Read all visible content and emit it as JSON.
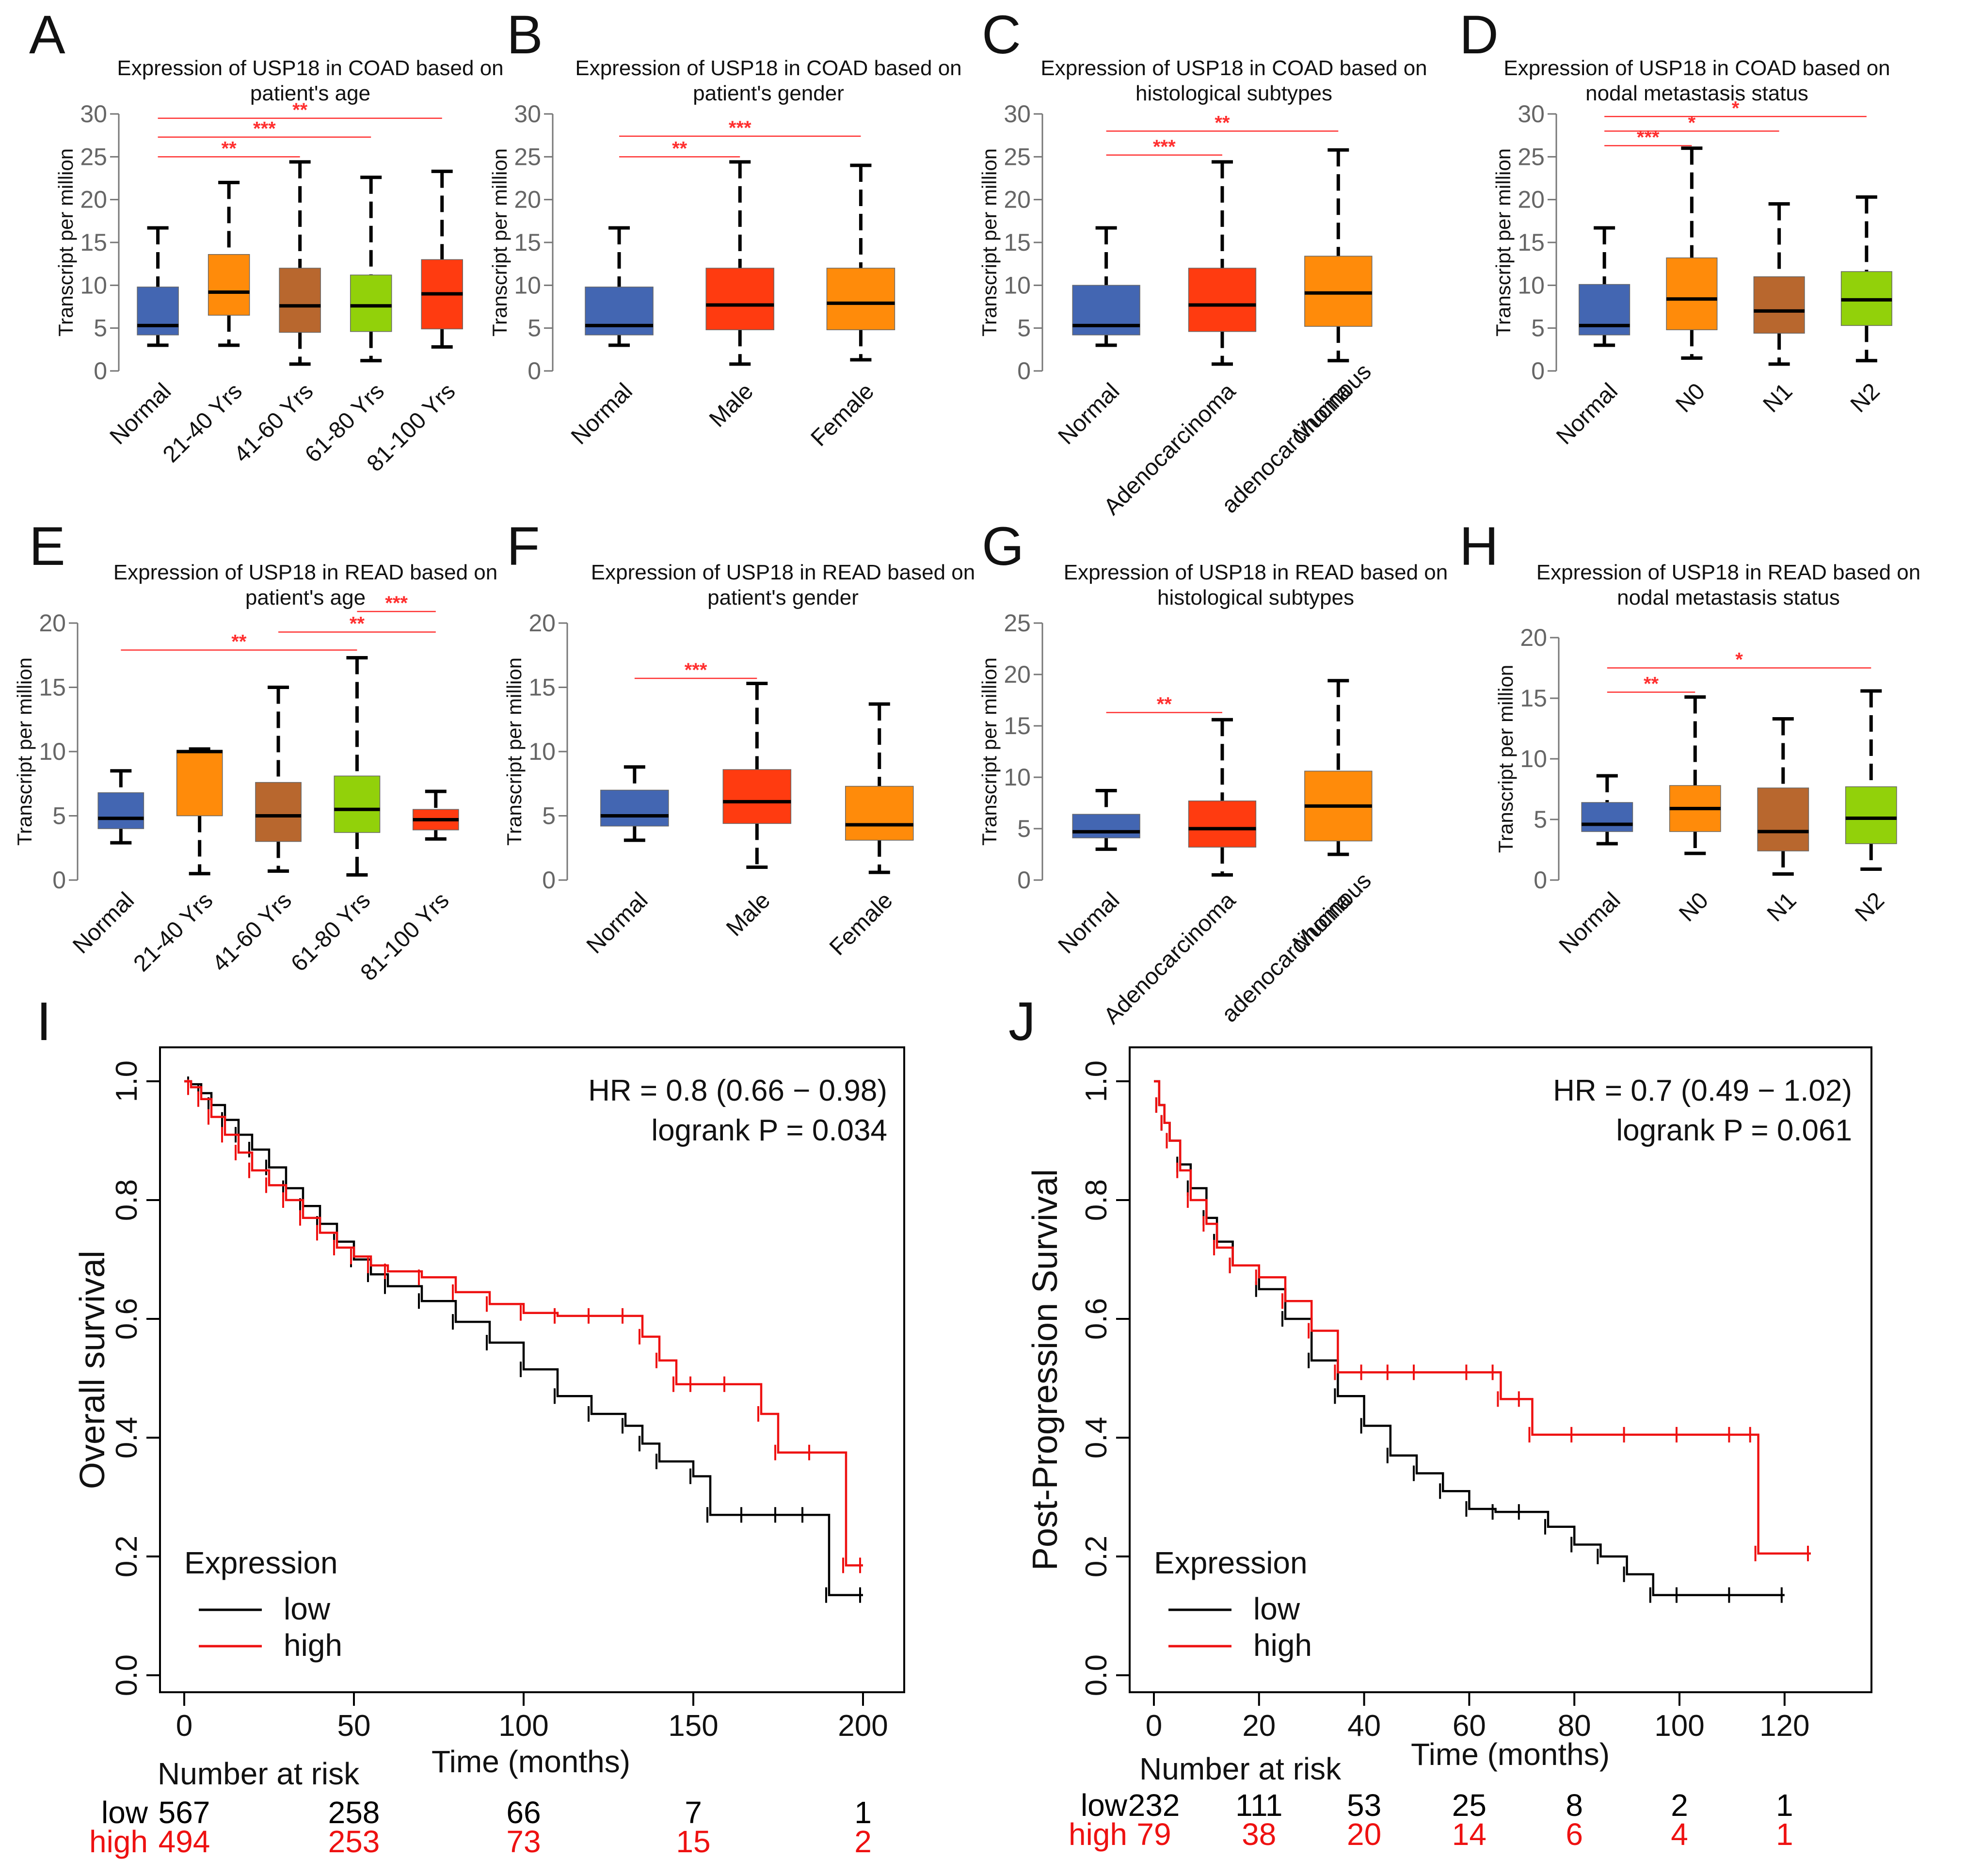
{
  "colors": {
    "normal": "#4366b2",
    "orange": "#ff8b0a",
    "red": "#ff3b10",
    "brown": "#b8672e",
    "green": "#92d10a",
    "sig_line": "#ff3030",
    "low_curve": "#000000",
    "high_curve": "#ee1111"
  },
  "chart_data": [
    {
      "panel": "A",
      "type": "boxplot",
      "title": [
        "Expression of USP18 in COAD based on",
        "patient's age"
      ],
      "ylabel": "Transcript per million",
      "ylim": [
        0,
        30
      ],
      "yticks": [
        0,
        5,
        10,
        15,
        20,
        25,
        30
      ],
      "groups": [
        {
          "label": "Normal",
          "color": "normal",
          "whisker_low": 3,
          "q1": 4.2,
          "median": 5.3,
          "q3": 9.8,
          "whisker_high": 16.7
        },
        {
          "label": "21-40 Yrs",
          "color": "orange",
          "whisker_low": 3,
          "q1": 6.5,
          "median": 9.2,
          "q3": 13.6,
          "whisker_high": 22
        },
        {
          "label": "41-60 Yrs",
          "color": "brown",
          "whisker_low": 0.8,
          "q1": 4.5,
          "median": 7.6,
          "q3": 12,
          "whisker_high": 24.4
        },
        {
          "label": "61-80 Yrs",
          "color": "green",
          "whisker_low": 1.2,
          "q1": 4.6,
          "median": 7.6,
          "q3": 11.2,
          "whisker_high": 22.6
        },
        {
          "label": "81-100 Yrs",
          "color": "red",
          "whisker_low": 2.8,
          "q1": 4.9,
          "median": 9,
          "q3": 13,
          "whisker_high": 23.3
        }
      ],
      "significance": [
        {
          "from": 0,
          "to": 2,
          "level": 25,
          "label": "**"
        },
        {
          "from": 0,
          "to": 3,
          "level": 27.3,
          "label": "***"
        },
        {
          "from": 0,
          "to": 4,
          "level": 29.5,
          "label": "**"
        }
      ]
    },
    {
      "panel": "B",
      "type": "boxplot",
      "title": [
        "Expression of USP18 in COAD based on",
        "patient's gender"
      ],
      "ylabel": "Transcript per million",
      "ylim": [
        0,
        30
      ],
      "yticks": [
        0,
        5,
        10,
        15,
        20,
        25,
        30
      ],
      "groups": [
        {
          "label": "Normal",
          "color": "normal",
          "whisker_low": 3,
          "q1": 4.2,
          "median": 5.3,
          "q3": 9.8,
          "whisker_high": 16.7
        },
        {
          "label": "Male",
          "color": "red",
          "whisker_low": 0.8,
          "q1": 4.8,
          "median": 7.7,
          "q3": 12,
          "whisker_high": 24.4
        },
        {
          "label": "Female",
          "color": "orange",
          "whisker_low": 1.3,
          "q1": 4.8,
          "median": 7.9,
          "q3": 12,
          "whisker_high": 24
        }
      ],
      "significance": [
        {
          "from": 0,
          "to": 1,
          "level": 25,
          "label": "**"
        },
        {
          "from": 0,
          "to": 2,
          "level": 27.4,
          "label": "***"
        }
      ]
    },
    {
      "panel": "C",
      "type": "boxplot",
      "title": [
        "Expression of USP18 in COAD based on",
        "histological subtypes"
      ],
      "ylabel": "Transcript per million",
      "ylim": [
        0,
        30
      ],
      "yticks": [
        0,
        5,
        10,
        15,
        20,
        25,
        30
      ],
      "groups": [
        {
          "label": "Normal",
          "color": "normal",
          "whisker_low": 3,
          "q1": 4.2,
          "median": 5.3,
          "q3": 10,
          "whisker_high": 16.7
        },
        {
          "label": [
            "Adenocarcinoma"
          ],
          "color": "red",
          "whisker_low": 0.8,
          "q1": 4.6,
          "median": 7.7,
          "q3": 12,
          "whisker_high": 24.4
        },
        {
          "label": [
            "Mucinous",
            "adenocarcinoma"
          ],
          "color": "orange",
          "whisker_low": 1.2,
          "q1": 5.2,
          "median": 9.1,
          "q3": 13.4,
          "whisker_high": 25.8
        }
      ],
      "significance": [
        {
          "from": 0,
          "to": 1,
          "level": 25.2,
          "label": "***"
        },
        {
          "from": 0,
          "to": 2,
          "level": 28,
          "label": "**"
        }
      ]
    },
    {
      "panel": "D",
      "type": "boxplot",
      "title": [
        "Expression of USP18 in COAD based on",
        "nodal metastasis status"
      ],
      "ylabel": "Transcript per million",
      "ylim": [
        0,
        30
      ],
      "yticks": [
        0,
        5,
        10,
        15,
        20,
        25,
        30
      ],
      "groups": [
        {
          "label": "Normal",
          "color": "normal",
          "whisker_low": 3,
          "q1": 4.2,
          "median": 5.3,
          "q3": 10.1,
          "whisker_high": 16.7
        },
        {
          "label": "N0",
          "color": "orange",
          "whisker_low": 1.5,
          "q1": 4.8,
          "median": 8.4,
          "q3": 13.2,
          "whisker_high": 26
        },
        {
          "label": "N1",
          "color": "brown",
          "whisker_low": 0.8,
          "q1": 4.4,
          "median": 7,
          "q3": 11,
          "whisker_high": 19.5
        },
        {
          "label": "N2",
          "color": "green",
          "whisker_low": 1.2,
          "q1": 5.3,
          "median": 8.3,
          "q3": 11.6,
          "whisker_high": 20.3
        }
      ],
      "significance": [
        {
          "from": 0,
          "to": 1,
          "level": 26.3,
          "label": "***"
        },
        {
          "from": 0,
          "to": 2,
          "level": 28,
          "label": "*"
        },
        {
          "from": 0,
          "to": 3,
          "level": 29.7,
          "label": "*"
        }
      ]
    },
    {
      "panel": "E",
      "type": "boxplot",
      "title": [
        "Expression of USP18 in READ based on",
        "patient's age"
      ],
      "ylabel": "Transcript per million",
      "ylim": [
        0,
        20
      ],
      "yticks": [
        0,
        5,
        10,
        15,
        20
      ],
      "groups": [
        {
          "label": "Normal",
          "color": "normal",
          "whisker_low": 2.9,
          "q1": 4,
          "median": 4.8,
          "q3": 6.8,
          "whisker_high": 8.5
        },
        {
          "label": "21-40 Yrs",
          "color": "orange",
          "whisker_low": 0.5,
          "q1": 5,
          "median": 10,
          "q3": 10.1,
          "whisker_high": 10.2
        },
        {
          "label": "41-60 Yrs",
          "color": "brown",
          "whisker_low": 0.7,
          "q1": 3,
          "median": 5,
          "q3": 7.6,
          "whisker_high": 15
        },
        {
          "label": "61-80 Yrs",
          "color": "green",
          "whisker_low": 0.4,
          "q1": 3.7,
          "median": 5.5,
          "q3": 8.1,
          "whisker_high": 17.3
        },
        {
          "label": "81-100 Yrs",
          "color": "red",
          "whisker_low": 3.2,
          "q1": 3.9,
          "median": 4.7,
          "q3": 5.5,
          "whisker_high": 6.9
        }
      ],
      "significance": [
        {
          "from": 0,
          "to": 3,
          "level": 17.9,
          "label": "**"
        },
        {
          "from": 2,
          "to": 4,
          "level": 19.3,
          "label": "**"
        },
        {
          "from": 3,
          "to": 4,
          "level": 20.9,
          "label": "***"
        }
      ]
    },
    {
      "panel": "F",
      "type": "boxplot",
      "title": [
        "Expression of USP18 in READ based on",
        "patient's gender"
      ],
      "ylabel": "Transcript per million",
      "ylim": [
        0,
        20
      ],
      "yticks": [
        0,
        5,
        10,
        15,
        20
      ],
      "groups": [
        {
          "label": "Normal",
          "color": "normal",
          "whisker_low": 3.1,
          "q1": 4.2,
          "median": 5,
          "q3": 7,
          "whisker_high": 8.8
        },
        {
          "label": "Male",
          "color": "red",
          "whisker_low": 1,
          "q1": 4.4,
          "median": 6.1,
          "q3": 8.6,
          "whisker_high": 15.3
        },
        {
          "label": "Female",
          "color": "orange",
          "whisker_low": 0.6,
          "q1": 3.1,
          "median": 4.3,
          "q3": 7.3,
          "whisker_high": 13.7
        }
      ],
      "significance": [
        {
          "from": 0,
          "to": 1,
          "level": 15.7,
          "label": "***"
        }
      ]
    },
    {
      "panel": "G",
      "type": "boxplot",
      "title": [
        "Expression of USP18 in READ based on",
        "histological subtypes"
      ],
      "ylabel": "Transcript per million",
      "ylim": [
        0,
        25
      ],
      "yticks": [
        0,
        5,
        10,
        15,
        20,
        25
      ],
      "groups": [
        {
          "label": "Normal",
          "color": "normal",
          "whisker_low": 3,
          "q1": 4.1,
          "median": 4.7,
          "q3": 6.4,
          "whisker_high": 8.7
        },
        {
          "label": [
            "Adenocarcinoma"
          ],
          "color": "red",
          "whisker_low": 0.5,
          "q1": 3.2,
          "median": 5,
          "q3": 7.7,
          "whisker_high": 15.6
        },
        {
          "label": [
            "Mucinous",
            "adenocarcinoma"
          ],
          "color": "orange",
          "whisker_low": 2.5,
          "q1": 3.8,
          "median": 7.2,
          "q3": 10.6,
          "whisker_high": 19.4
        }
      ],
      "significance": [
        {
          "from": 0,
          "to": 1,
          "level": 16.3,
          "label": "**"
        }
      ]
    },
    {
      "panel": "H",
      "type": "boxplot",
      "title": [
        "Expression of USP18 in READ based on",
        "nodal metastasis status"
      ],
      "ylabel": "Transcript per million",
      "ylim": [
        0,
        20
      ],
      "yticks": [
        0,
        5,
        10,
        15,
        20
      ],
      "groups": [
        {
          "label": "Normal",
          "color": "normal",
          "whisker_low": 3,
          "q1": 4,
          "median": 4.6,
          "q3": 6.4,
          "whisker_high": 8.6
        },
        {
          "label": "N0",
          "color": "orange",
          "whisker_low": 2.2,
          "q1": 4,
          "median": 5.9,
          "q3": 7.8,
          "whisker_high": 15.1
        },
        {
          "label": "N1",
          "color": "brown",
          "whisker_low": 0.5,
          "q1": 2.4,
          "median": 4,
          "q3": 7.6,
          "whisker_high": 13.3
        },
        {
          "label": "N2",
          "color": "green",
          "whisker_low": 0.9,
          "q1": 3,
          "median": 5.1,
          "q3": 7.7,
          "whisker_high": 15.6
        }
      ],
      "significance": [
        {
          "from": 0,
          "to": 1,
          "level": 15.5,
          "label": "**"
        },
        {
          "from": 0,
          "to": 3,
          "level": 17.5,
          "label": "*"
        }
      ]
    },
    {
      "panel": "I",
      "type": "line",
      "title": "",
      "xlabel": "Time (months)",
      "ylabel": "Overall survival",
      "xlim": [
        0,
        200
      ],
      "ylim": [
        0,
        1
      ],
      "xticks": [
        0,
        50,
        100,
        150,
        200
      ],
      "yticks": [
        "0.0",
        "0.2",
        "0.4",
        "0.6",
        "0.8",
        "1.0"
      ],
      "stats": [
        "HR = 0.8 (0.66 − 0.98)",
        "logrank P = 0.034"
      ],
      "legend_title": "Expression",
      "series": [
        {
          "name": "low",
          "color": "low_curve",
          "x": [
            0,
            2,
            5,
            8,
            12,
            16,
            20,
            25,
            30,
            35,
            40,
            45,
            50,
            55,
            60,
            70,
            80,
            90,
            100,
            110,
            120,
            130,
            135,
            140,
            150,
            155,
            165,
            175,
            183,
            190,
            200
          ],
          "y": [
            1.0,
            0.995,
            0.98,
            0.96,
            0.935,
            0.91,
            0.885,
            0.855,
            0.82,
            0.79,
            0.76,
            0.73,
            0.7,
            0.675,
            0.655,
            0.63,
            0.595,
            0.56,
            0.515,
            0.47,
            0.44,
            0.42,
            0.39,
            0.36,
            0.335,
            0.27,
            0.27,
            0.27,
            0.27,
            0.135,
            0.135
          ]
        },
        {
          "name": "high",
          "color": "high_curve",
          "x": [
            0,
            2,
            5,
            8,
            12,
            16,
            20,
            25,
            30,
            35,
            40,
            45,
            50,
            55,
            60,
            70,
            80,
            90,
            100,
            110,
            120,
            130,
            135,
            140,
            145,
            150,
            160,
            170,
            175,
            185,
            195,
            200
          ],
          "y": [
            1.0,
            0.99,
            0.97,
            0.94,
            0.91,
            0.88,
            0.85,
            0.825,
            0.8,
            0.77,
            0.745,
            0.72,
            0.705,
            0.69,
            0.68,
            0.67,
            0.645,
            0.625,
            0.61,
            0.605,
            0.605,
            0.605,
            0.57,
            0.53,
            0.49,
            0.49,
            0.49,
            0.44,
            0.375,
            0.375,
            0.185,
            0.185
          ]
        }
      ],
      "risk_table": {
        "title": "Number at risk",
        "times": [
          0,
          50,
          100,
          150,
          200
        ],
        "rows": [
          {
            "name": "low",
            "color": "low_curve",
            "values": [
              567,
              258,
              66,
              7,
              1
            ]
          },
          {
            "name": "high",
            "color": "high_curve",
            "values": [
              494,
              253,
              73,
              15,
              2
            ]
          }
        ]
      }
    },
    {
      "panel": "J",
      "type": "line",
      "title": "",
      "xlabel": "Time (months)",
      "ylabel": "Post-Progression Survival",
      "xlim": [
        0,
        125
      ],
      "ylim": [
        0,
        1
      ],
      "xticks": [
        0,
        20,
        40,
        60,
        80,
        100,
        120
      ],
      "yticks": [
        "0.0",
        "0.2",
        "0.4",
        "0.6",
        "0.8",
        "1.0"
      ],
      "stats": [
        "HR = 0.7 (0.49 − 1.02)",
        "logrank P = 0.061"
      ],
      "legend_title": "Expression",
      "series": [
        {
          "name": "low",
          "color": "low_curve",
          "x": [
            0,
            1,
            2,
            3,
            5,
            7,
            10,
            12,
            15,
            20,
            25,
            30,
            35,
            40,
            45,
            50,
            55,
            60,
            65,
            70,
            75,
            80,
            85,
            90,
            95,
            100,
            110,
            120
          ],
          "y": [
            1.0,
            0.96,
            0.93,
            0.9,
            0.86,
            0.82,
            0.77,
            0.73,
            0.69,
            0.65,
            0.6,
            0.53,
            0.47,
            0.42,
            0.37,
            0.34,
            0.31,
            0.28,
            0.275,
            0.275,
            0.25,
            0.22,
            0.2,
            0.17,
            0.135,
            0.135,
            0.135,
            0.135
          ]
        },
        {
          "name": "high",
          "color": "high_curve",
          "x": [
            0,
            1,
            2,
            3,
            5,
            7,
            10,
            12,
            15,
            20,
            25,
            30,
            35,
            40,
            45,
            50,
            60,
            65,
            66,
            70,
            72,
            80,
            90,
            100,
            110,
            114,
            115,
            125
          ],
          "y": [
            1.0,
            0.96,
            0.93,
            0.9,
            0.85,
            0.8,
            0.76,
            0.72,
            0.69,
            0.67,
            0.63,
            0.58,
            0.51,
            0.51,
            0.51,
            0.51,
            0.51,
            0.51,
            0.465,
            0.465,
            0.405,
            0.405,
            0.405,
            0.405,
            0.405,
            0.405,
            0.205,
            0.205
          ]
        }
      ],
      "risk_table": {
        "title": "Number at risk",
        "times": [
          0,
          20,
          40,
          60,
          80,
          100,
          120
        ],
        "rows": [
          {
            "name": "low",
            "color": "low_curve",
            "values": [
              232,
              111,
              53,
              25,
              8,
              2,
              1
            ]
          },
          {
            "name": "high",
            "color": "high_curve",
            "values": [
              79,
              38,
              20,
              14,
              6,
              4,
              1
            ]
          }
        ]
      }
    }
  ]
}
